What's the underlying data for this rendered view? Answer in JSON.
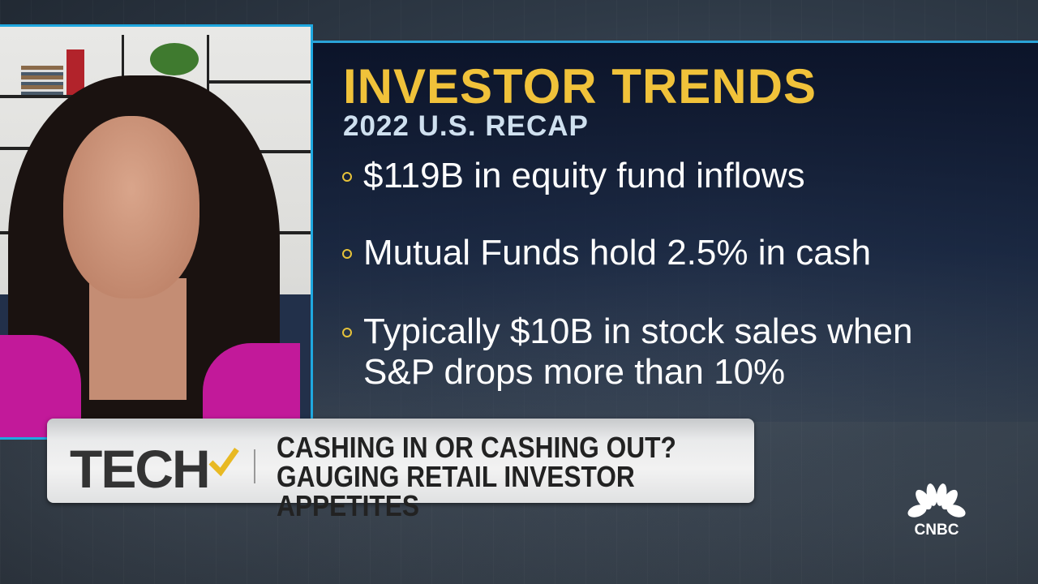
{
  "graphic": {
    "title": "INVESTOR TRENDS",
    "subtitle": "2022 U.S. RECAP",
    "bullets": [
      {
        "text": "$119B in equity fund inflows"
      },
      {
        "text": "Mutual Funds hold 2.5% in cash"
      },
      {
        "text": "Typically $10B in stock sales when S&P drops more than 10%"
      }
    ],
    "title_color": "#f0c23a",
    "accent_color": "#1fa8e0"
  },
  "lower_third": {
    "segment": "TECH",
    "headline": "CASHING IN OR CASHING OUT?",
    "subheadline": "GAUGING RETAIL INVESTOR APPETITES"
  },
  "network_logo": {
    "text": "CNBC",
    "icon": "peacock-icon"
  }
}
